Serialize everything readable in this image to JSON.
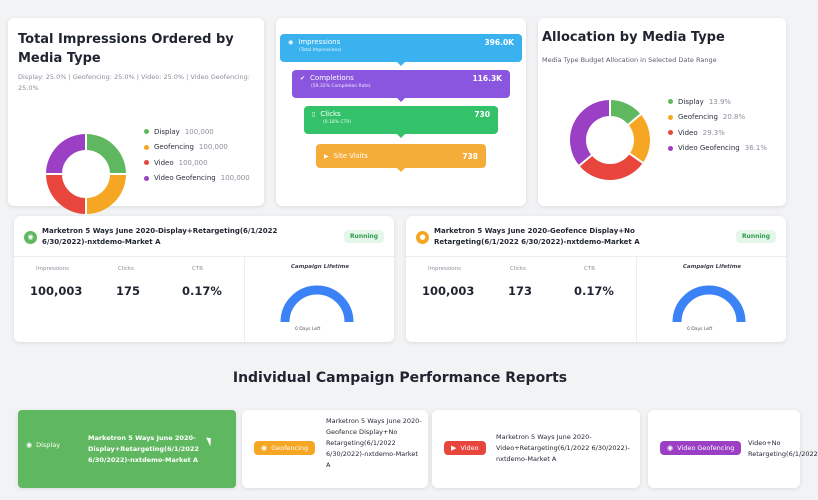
{
  "impressions_card": {
    "title": "Total Impressions Ordered by Media Type",
    "subtitle": "Display: 25.0% | Geofencing: 25.0% | Video: 25.0% | Video Geofencing: 25.0%",
    "legend": [
      {
        "label": "Display",
        "value": "100,000",
        "color": "#5fb85f"
      },
      {
        "label": "Geofencing",
        "value": "100,000",
        "color": "#f5a623"
      },
      {
        "label": "Video",
        "value": "100,000",
        "color": "#e8463c"
      },
      {
        "label": "Video Geofencing",
        "value": "100,000",
        "color": "#9b3fc4"
      }
    ],
    "donut_shares": [
      25,
      25,
      25,
      25
    ]
  },
  "funnel": {
    "steps": [
      {
        "label": "Impressions",
        "sub": "(Total Impressions)",
        "value": "396.0K",
        "color": "#3ab2f0",
        "icon": "eye-icon"
      },
      {
        "label": "Completions",
        "sub": "(59.32% Completion Rate)",
        "value": "116.3K",
        "color": "#8a56e0",
        "icon": "check-icon"
      },
      {
        "label": "Clicks",
        "sub": "(0.18% CTR)",
        "value": "730",
        "color": "#33c26a",
        "icon": "mouse-icon"
      },
      {
        "label": "Site Visits",
        "sub": "",
        "value": "738",
        "color": "#f5ad3a",
        "icon": "cursor-icon"
      }
    ]
  },
  "allocation_card": {
    "title": "Allocation by Media Type",
    "subtitle": "Media Type Budget Allocation in Selected Date Range",
    "legend": [
      {
        "label": "Display",
        "value": "13.9%",
        "color": "#5fb85f"
      },
      {
        "label": "Geofencing",
        "value": "20.8%",
        "color": "#f5a623"
      },
      {
        "label": "Video",
        "value": "29.3%",
        "color": "#e8463c"
      },
      {
        "label": "Video Geofencing",
        "value": "36.1%",
        "color": "#9b3fc4"
      }
    ],
    "donut_shares": [
      13.9,
      20.8,
      29.3,
      36.1
    ]
  },
  "campaigns": [
    {
      "name": "Marketron 5 Ways June 2020-Display+Retargeting(6/1/2022 6/30/2022)-nxtdemo-Market A",
      "status": "Running",
      "icon_color": "#5fb85f",
      "impressions_label": "Impressions",
      "impressions": "100,003",
      "clicks_label": "Clicks",
      "clicks": "175",
      "ctr_label": "CTR",
      "ctr": "0.17%",
      "lifetime_label": "Campaign Lifetime",
      "days_left": "0 Days Left",
      "gauge_color": "#3b82f6"
    },
    {
      "name": "Marketron 5 Ways June 2020-Geofence Display+No Retargeting(6/1/2022 6/30/2022)-nxtdemo-Market A",
      "status": "Running",
      "icon_color": "#f5a623",
      "impressions_label": "Impressions",
      "impressions": "100,003",
      "clicks_label": "Clicks",
      "clicks": "173",
      "ctr_label": "CTR",
      "ctr": "0.17%",
      "lifetime_label": "Campaign Lifetime",
      "days_left": "0 Days Left",
      "gauge_color": "#3b82f6"
    }
  ],
  "section": {
    "title": "Individual Campaign Performance Reports"
  },
  "report_tabs": [
    {
      "pill": "Display",
      "pill_color": "#5fb85f",
      "text": "Marketron 5 Ways June 2020-Display+Retargeting(6/1/2022 6/30/2022)-nxtdemo-Market A",
      "active": true
    },
    {
      "pill": "Geofencing",
      "pill_color": "#f5a623",
      "text": "Marketron 5 Ways June 2020-Geofence Display+No Retargeting(6/1/2022 6/30/2022)-nxtdemo-Market A",
      "active": false
    },
    {
      "pill": "Video",
      "pill_color": "#e8463c",
      "text": "Marketron 5 Ways June 2020-Video+Retargeting(6/1/2022 6/30/2022)-nxtdemo-Market A",
      "active": false
    },
    {
      "pill": "Video Geofencing",
      "pill_color": "#9b3fc4",
      "text": "Video+No Retargeting(6/1/2022",
      "active": false
    }
  ]
}
